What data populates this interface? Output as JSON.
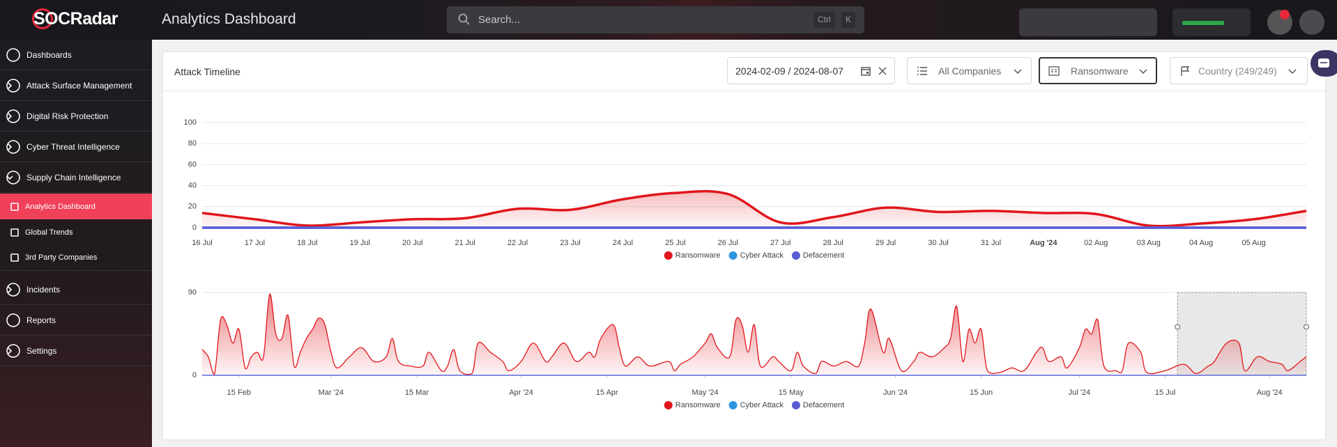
{
  "header": {
    "logo": "SOCRadar",
    "title": "Analytics Dashboard",
    "search_placeholder": "Search...",
    "shortcut": [
      "Ctrl",
      "K"
    ]
  },
  "sidebar": {
    "items": [
      {
        "label": "Dashboards"
      },
      {
        "label": "Attack Surface Management",
        "chevron": "right"
      },
      {
        "label": "Digital Risk Protection",
        "chevron": "right"
      },
      {
        "label": "Cyber Threat Intelligence",
        "chevron": "right"
      },
      {
        "label": "Supply Chain Intelligence",
        "chevron": "down"
      },
      {
        "label": "Analytics Dashboard",
        "sub": true,
        "active": true
      },
      {
        "label": "Global Trends",
        "sub": true
      },
      {
        "label": "3rd Party Companies",
        "sub": true
      },
      {
        "label": "Incidents",
        "chevron": "right"
      },
      {
        "label": "Reports"
      },
      {
        "label": "Settings",
        "chevron": "right"
      }
    ]
  },
  "card": {
    "title": "Attack Timeline",
    "filters": {
      "date_range": "2024-02-09 / 2024-08-07",
      "companies": "All Companies",
      "attack_type": "Ransomware",
      "country": "Country (249/249)"
    }
  },
  "chart_data": [
    {
      "type": "area",
      "categories": [
        "16 Jul",
        "17 Jul",
        "18 Jul",
        "19 Jul",
        "20 Jul",
        "21 Jul",
        "22 Jul",
        "23 Jul",
        "24 Jul",
        "25 Jul",
        "26 Jul",
        "27 Jul",
        "28 Jul",
        "29 Jul",
        "30 Jul",
        "31 Jul",
        "Aug '24",
        "02 Aug",
        "03 Aug",
        "04 Aug",
        "05 Aug",
        null
      ],
      "series": [
        {
          "name": "Ransomware",
          "color": "#e0161c",
          "values": [
            14,
            8,
            2,
            5,
            8,
            9,
            18,
            17,
            27,
            33,
            32,
            5,
            10,
            19,
            15,
            16,
            14,
            13,
            2,
            4,
            8,
            16
          ]
        },
        {
          "name": "Cyber Attack",
          "color": "#2f95e0",
          "values": [
            0,
            0,
            0,
            0,
            0,
            0,
            0,
            0,
            0,
            0,
            0,
            0,
            0,
            0,
            0,
            0,
            0,
            0,
            0,
            0,
            0,
            0
          ]
        },
        {
          "name": "Defacement",
          "color": "#5b5bd6",
          "values": [
            0,
            0,
            0,
            0,
            0,
            0,
            0,
            0,
            0,
            0,
            0,
            0,
            0,
            0,
            0,
            0,
            0,
            0,
            0,
            0,
            0,
            0
          ]
        }
      ],
      "ylim": [
        0,
        100
      ],
      "yticks": [
        0,
        20,
        40,
        60,
        80,
        100
      ],
      "grid": true,
      "legend": "bottom"
    },
    {
      "type": "area",
      "series": [
        {
          "name": "Ransomware",
          "color": "#e0161c",
          "x": [
            "2024-02-09",
            "2024-02-10",
            "2024-02-11",
            "2024-02-12",
            "2024-02-13",
            "2024-02-14",
            "2024-02-15",
            "2024-02-16",
            "2024-02-17",
            "2024-02-18",
            "2024-02-19",
            "2024-02-20",
            "2024-02-21",
            "2024-02-22",
            "2024-02-23",
            "2024-02-24",
            "2024-02-25",
            "2024-02-26",
            "2024-02-27",
            "2024-02-28",
            "2024-02-29",
            "2024-03-01",
            "2024-03-02",
            "2024-03-04",
            "2024-03-06",
            "2024-03-08",
            "2024-03-10",
            "2024-03-11",
            "2024-03-12",
            "2024-03-14",
            "2024-03-16",
            "2024-03-17",
            "2024-03-19",
            "2024-03-20",
            "2024-03-21",
            "2024-03-22",
            "2024-03-24",
            "2024-03-25",
            "2024-03-27",
            "2024-03-29",
            "2024-03-30",
            "2024-04-01",
            "2024-04-03",
            "2024-04-05",
            "2024-04-06",
            "2024-04-08",
            "2024-04-10",
            "2024-04-12",
            "2024-04-13",
            "2024-04-14",
            "2024-04-16",
            "2024-04-17",
            "2024-04-18",
            "2024-04-20",
            "2024-04-22",
            "2024-04-25",
            "2024-04-26",
            "2024-04-27",
            "2024-04-29",
            "2024-05-01",
            "2024-05-02",
            "2024-05-03",
            "2024-05-05",
            "2024-05-06",
            "2024-05-07",
            "2024-05-08",
            "2024-05-09",
            "2024-05-10",
            "2024-05-12",
            "2024-05-13",
            "2024-05-15",
            "2024-05-16",
            "2024-05-17",
            "2024-05-19",
            "2024-05-20",
            "2024-05-22",
            "2024-05-24",
            "2024-05-26",
            "2024-05-27",
            "2024-05-28",
            "2024-05-30",
            "2024-05-31",
            "2024-06-02",
            "2024-06-04",
            "2024-06-05",
            "2024-06-07",
            "2024-06-09",
            "2024-06-10",
            "2024-06-11",
            "2024-06-12",
            "2024-06-13",
            "2024-06-14",
            "2024-06-15",
            "2024-06-16",
            "2024-06-18",
            "2024-06-20",
            "2024-06-22",
            "2024-06-24",
            "2024-06-25",
            "2024-06-26",
            "2024-06-28",
            "2024-06-29",
            "2024-07-01",
            "2024-07-02",
            "2024-07-03",
            "2024-07-04",
            "2024-07-05",
            "2024-07-07",
            "2024-07-08",
            "2024-07-09",
            "2024-07-11",
            "2024-07-12",
            "2024-07-15",
            "2024-07-18",
            "2024-07-20",
            "2024-07-22",
            "2024-07-23",
            "2024-07-25",
            "2024-07-27",
            "2024-07-28",
            "2024-07-30",
            "2024-08-01",
            "2024-08-03",
            "2024-08-04",
            "2024-08-06",
            "2024-08-07"
          ],
          "values": [
            28,
            20,
            1,
            60,
            55,
            35,
            50,
            8,
            20,
            25,
            20,
            88,
            45,
            40,
            65,
            10,
            25,
            40,
            50,
            62,
            55,
            25,
            8,
            20,
            30,
            15,
            20,
            40,
            15,
            10,
            10,
            25,
            5,
            10,
            28,
            5,
            2,
            35,
            25,
            15,
            5,
            15,
            35,
            15,
            20,
            35,
            15,
            25,
            20,
            40,
            55,
            30,
            10,
            20,
            10,
            15,
            5,
            12,
            20,
            35,
            45,
            30,
            20,
            60,
            55,
            25,
            55,
            10,
            20,
            15,
            5,
            25,
            10,
            2,
            15,
            10,
            15,
            10,
            35,
            72,
            25,
            40,
            5,
            15,
            25,
            20,
            30,
            40,
            75,
            15,
            50,
            35,
            50,
            5,
            3,
            8,
            5,
            25,
            30,
            15,
            20,
            8,
            30,
            50,
            45,
            60,
            10,
            5,
            5,
            35,
            25,
            3,
            5,
            12,
            2,
            10,
            15,
            35,
            35,
            5,
            20,
            15,
            12,
            5,
            15,
            20
          ]
        },
        {
          "name": "Cyber Attack",
          "color": "#2f95e0",
          "x": [
            "2024-02-09",
            "2024-08-07"
          ],
          "values": [
            0,
            0
          ]
        },
        {
          "name": "Defacement",
          "color": "#5b5bd6",
          "x": [
            "2024-02-09",
            "2024-08-07"
          ],
          "values": [
            0,
            0
          ]
        }
      ],
      "xlim": [
        "2024-02-09",
        "2024-08-07"
      ],
      "xticks": [
        {
          "value": "2024-02-15",
          "label": "15 Feb"
        },
        {
          "value": "2024-03-01",
          "label": "Mar '24"
        },
        {
          "value": "2024-03-15",
          "label": "15 Mar"
        },
        {
          "value": "2024-04-01",
          "label": "Apr '24"
        },
        {
          "value": "2024-04-15",
          "label": "15 Apr"
        },
        {
          "value": "2024-05-01",
          "label": "May '24"
        },
        {
          "value": "2024-05-15",
          "label": "15 May"
        },
        {
          "value": "2024-06-01",
          "label": "Jun '24"
        },
        {
          "value": "2024-06-15",
          "label": "15 Jun"
        },
        {
          "value": "2024-07-01",
          "label": "Jul '24"
        },
        {
          "value": "2024-07-15",
          "label": "15 Jul"
        },
        {
          "value": "2024-08-01",
          "label": "Aug '24"
        }
      ],
      "ylim": [
        0,
        90
      ],
      "yticks": [
        0,
        90
      ],
      "grid": true,
      "legend": "bottom",
      "range": [
        "2024-07-17",
        "2024-08-07"
      ]
    }
  ]
}
